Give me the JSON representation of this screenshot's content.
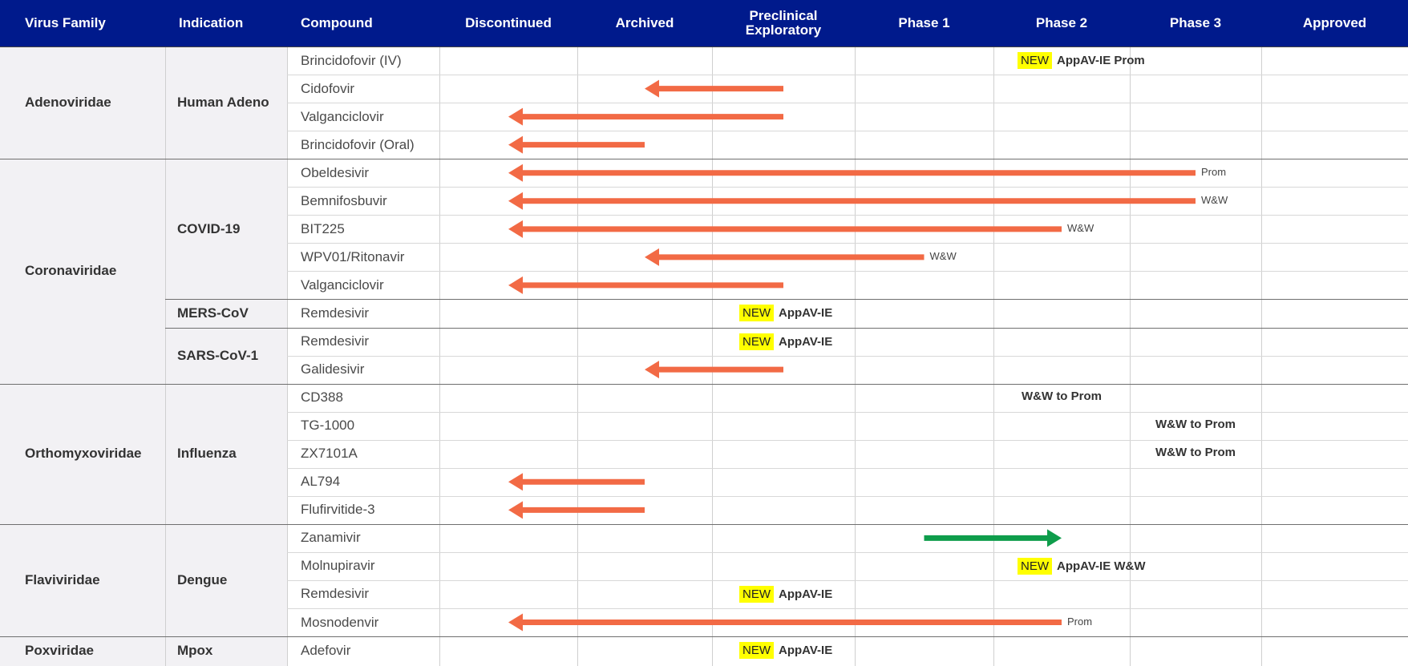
{
  "columns": [
    "Virus Family",
    "Indication",
    "Compound",
    "Discontinued",
    "Archived",
    "Preclinical\nExploratory",
    "Phase 1",
    "Phase 2",
    "Phase 3",
    "Approved"
  ],
  "colors": {
    "header_bg": "#001a8c",
    "discontinued_arrow": "#f26a45",
    "advance_arrow": "#0e9d4b",
    "new_badge": "#ffff00"
  },
  "families": [
    {
      "name": "Adenoviridae",
      "start": 0,
      "end": 3
    },
    {
      "name": "Coronaviridae",
      "start": 4,
      "end": 11
    },
    {
      "name": "Orthomyxoviridae",
      "start": 12,
      "end": 16
    },
    {
      "name": "Flaviviridae",
      "start": 17,
      "end": 20
    },
    {
      "name": "Poxviridae",
      "start": 21,
      "end": 21
    }
  ],
  "indications": [
    {
      "name": "Human Adeno",
      "start": 0,
      "end": 3
    },
    {
      "name": "COVID-19",
      "start": 4,
      "end": 8
    },
    {
      "name": "MERS-CoV",
      "start": 9,
      "end": 9
    },
    {
      "name": "SARS-CoV-1",
      "start": 10,
      "end": 11
    },
    {
      "name": "Influenza",
      "start": 12,
      "end": 16
    },
    {
      "name": "Dengue",
      "start": 17,
      "end": 20
    },
    {
      "name": "Mpox",
      "start": 21,
      "end": 21
    }
  ],
  "chart_data": {
    "type": "table",
    "stages": [
      "Discontinued",
      "Archived",
      "Preclinical Exploratory",
      "Phase 1",
      "Phase 2",
      "Phase 3",
      "Approved"
    ],
    "rows": [
      {
        "compound": "Brincidofovir (IV)",
        "new": true,
        "status": "Phase 2",
        "note": "AppAV-IE Prom"
      },
      {
        "compound": "Cidofovir",
        "arrow": {
          "from": "Preclinical Exploratory",
          "to": "Archived",
          "color": "orange"
        }
      },
      {
        "compound": "Valganciclovir",
        "arrow": {
          "from": "Preclinical Exploratory",
          "to": "Discontinued",
          "color": "orange"
        }
      },
      {
        "compound": "Brincidofovir (Oral)",
        "arrow": {
          "from": "Archived",
          "to": "Discontinued",
          "color": "orange"
        }
      },
      {
        "compound": "Obeldesivir",
        "arrow": {
          "from": "Phase 3",
          "to": "Discontinued",
          "color": "orange"
        },
        "tag": "Prom"
      },
      {
        "compound": "Bemnifosbuvir",
        "arrow": {
          "from": "Phase 3",
          "to": "Discontinued",
          "color": "orange"
        },
        "tag": "W&W"
      },
      {
        "compound": "BIT225",
        "arrow": {
          "from": "Phase 2",
          "to": "Discontinued",
          "color": "orange"
        },
        "tag": "W&W"
      },
      {
        "compound": "WPV01/Ritonavir",
        "arrow": {
          "from": "Phase 1",
          "to": "Archived",
          "color": "orange"
        },
        "tag": "W&W"
      },
      {
        "compound": "Valganciclovir",
        "arrow": {
          "from": "Preclinical Exploratory",
          "to": "Discontinued",
          "color": "orange"
        }
      },
      {
        "compound": "Remdesivir",
        "new": true,
        "status": "Preclinical Exploratory",
        "note": "AppAV-IE"
      },
      {
        "compound": "Remdesivir",
        "new": true,
        "status": "Preclinical Exploratory",
        "note": "AppAV-IE"
      },
      {
        "compound": "Galidesivir",
        "arrow": {
          "from": "Preclinical Exploratory",
          "to": "Archived",
          "color": "orange"
        }
      },
      {
        "compound": "CD388",
        "status": "Phase 2",
        "note": "W&W to Prom"
      },
      {
        "compound": "TG-1000",
        "status": "Phase 3",
        "note": "W&W to Prom"
      },
      {
        "compound": "ZX7101A",
        "status": "Phase 3",
        "note": "W&W to Prom"
      },
      {
        "compound": "AL794",
        "arrow": {
          "from": "Archived",
          "to": "Discontinued",
          "color": "orange"
        }
      },
      {
        "compound": "Flufirvitide-3",
        "arrow": {
          "from": "Archived",
          "to": "Discontinued",
          "color": "orange"
        }
      },
      {
        "compound": "Zanamivir",
        "arrow": {
          "from": "Phase 1",
          "to": "Phase 2",
          "color": "green"
        }
      },
      {
        "compound": "Molnupiravir",
        "new": true,
        "status": "Phase 2",
        "note": "AppAV-IE W&W"
      },
      {
        "compound": "Remdesivir",
        "new": true,
        "status": "Preclinical Exploratory",
        "note": "AppAV-IE"
      },
      {
        "compound": "Mosnodenvir",
        "arrow": {
          "from": "Phase 2",
          "to": "Discontinued",
          "color": "orange"
        },
        "tag": "Prom"
      },
      {
        "compound": "Adefovir",
        "new": true,
        "status": "Preclinical Exploratory",
        "note": "AppAV-IE"
      }
    ],
    "new_label": "NEW"
  }
}
